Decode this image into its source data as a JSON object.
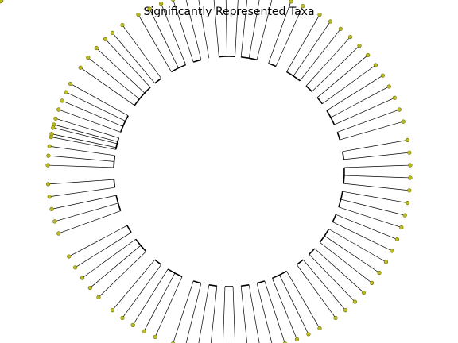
{
  "figure": {
    "title": "Significantly Represented Taxa"
  },
  "colors": {
    "node_fill": "#bcbd22",
    "node_edge": "#6b6b00",
    "line": "#000000",
    "background": "#ffffff"
  }
}
